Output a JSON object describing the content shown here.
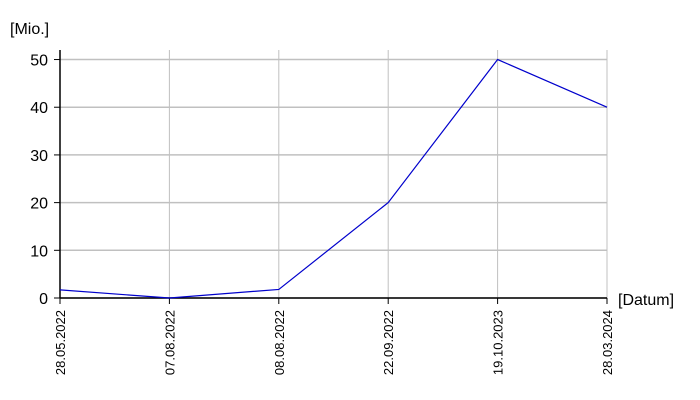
{
  "chart_data": {
    "type": "line",
    "y_label": "[Mio.]",
    "x_label": "[Datum]",
    "categories": [
      "28.05.2022",
      "07.08.2022",
      "08.08.2022",
      "22.09.2022",
      "19.10.2023",
      "28.03.2024"
    ],
    "values": [
      1.7,
      0,
      1.8,
      20,
      50,
      40
    ],
    "color": "#0000cc",
    "ylim": [
      0,
      52
    ],
    "yticks": [
      0,
      10,
      20,
      30,
      40,
      50
    ],
    "grid": true
  }
}
